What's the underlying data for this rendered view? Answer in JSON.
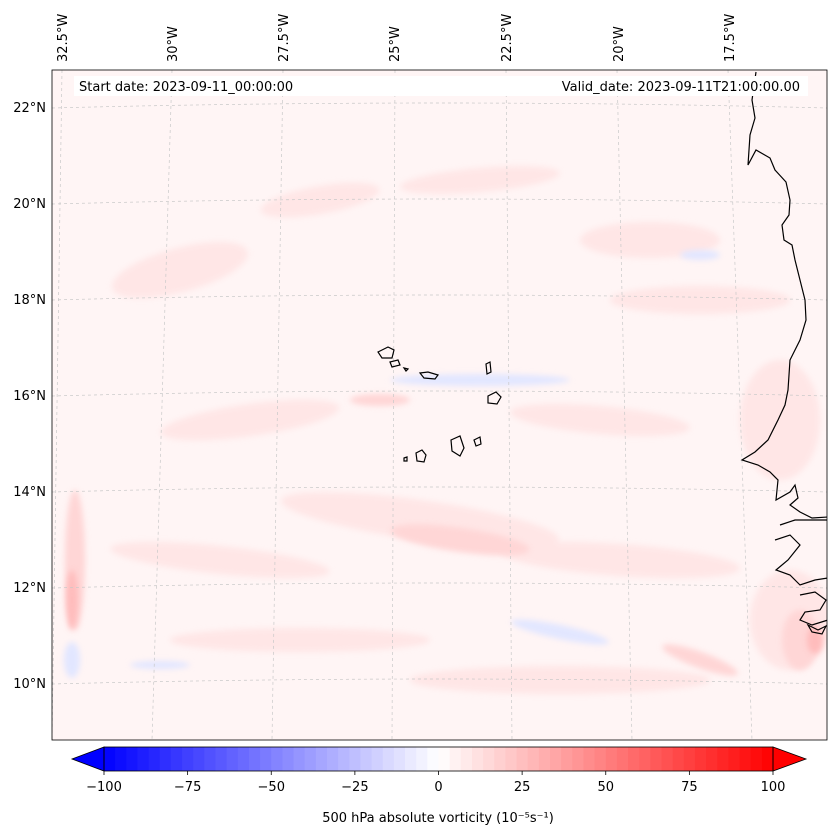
{
  "header": {
    "start_date": "Start date: 2023-09-11_00:00:00",
    "valid_date": "Valid_date: 2023-09-11T21:00:00.00"
  },
  "map": {
    "projection": "Lambert conformal",
    "lon_labels": [
      "32.5°W",
      "30°W",
      "27.5°W",
      "25°W",
      "22.5°W",
      "20°W",
      "17.5°W"
    ],
    "lat_labels": [
      "22°N",
      "20°N",
      "18°N",
      "16°N",
      "14°N",
      "12°N",
      "10°N"
    ],
    "gridlines": "dashed",
    "features": [
      "Cape Verde islands",
      "West African coastline"
    ],
    "field": "500 hPa absolute vorticity",
    "field_appearance": "weak positive vorticity (pale red) over most of domain, bands of stronger values near 11-12°N and at western edge, small negative (blue) patches"
  },
  "colorbar": {
    "label": "500 hPa absolute vorticity (10⁻⁵s⁻¹)",
    "ticks": [
      "−100",
      "−75",
      "−50",
      "−25",
      "0",
      "25",
      "50",
      "75",
      "100"
    ],
    "range": [
      -100,
      100
    ],
    "levels": 60,
    "extend": "both",
    "colormap": "bwr",
    "colors": {
      "min": "#0000ff",
      "mid": "#ffffff",
      "max": "#ff0000"
    }
  }
}
